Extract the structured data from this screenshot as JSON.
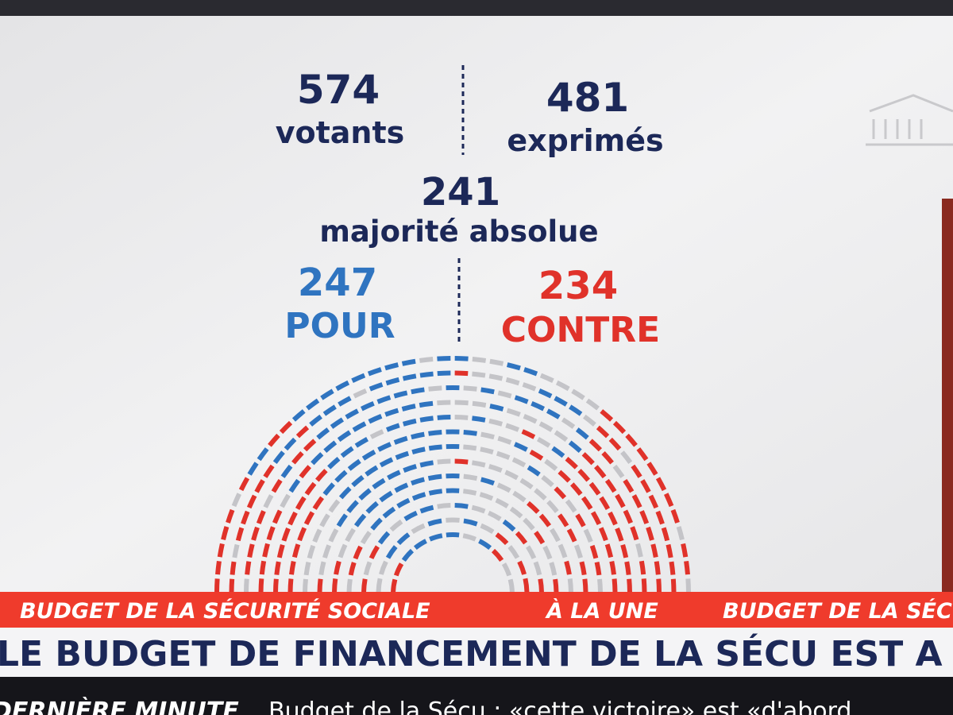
{
  "results": {
    "votants": {
      "number": 574,
      "label": "votants"
    },
    "exprimes": {
      "number": 481,
      "label": "exprimés"
    },
    "majorite": {
      "number": 241,
      "label": "majorité absolue"
    },
    "pour": {
      "number": 247,
      "label": "POUR"
    },
    "contre": {
      "number": 234,
      "label": "CONTRE"
    }
  },
  "ticker": {
    "items": [
      "BUDGET DE LA SÉCURITÉ SOCIALE",
      "À LA UNE",
      "BUDGET DE LA SÉC"
    ]
  },
  "headline": "LE BUDGET DE FINANCEMENT DE LA SÉCU EST A",
  "breaking": {
    "tag": "DERNIÈRE MINUTE",
    "text": "Budget de la Sécu : «cette victoire» est «d'abord"
  }
}
